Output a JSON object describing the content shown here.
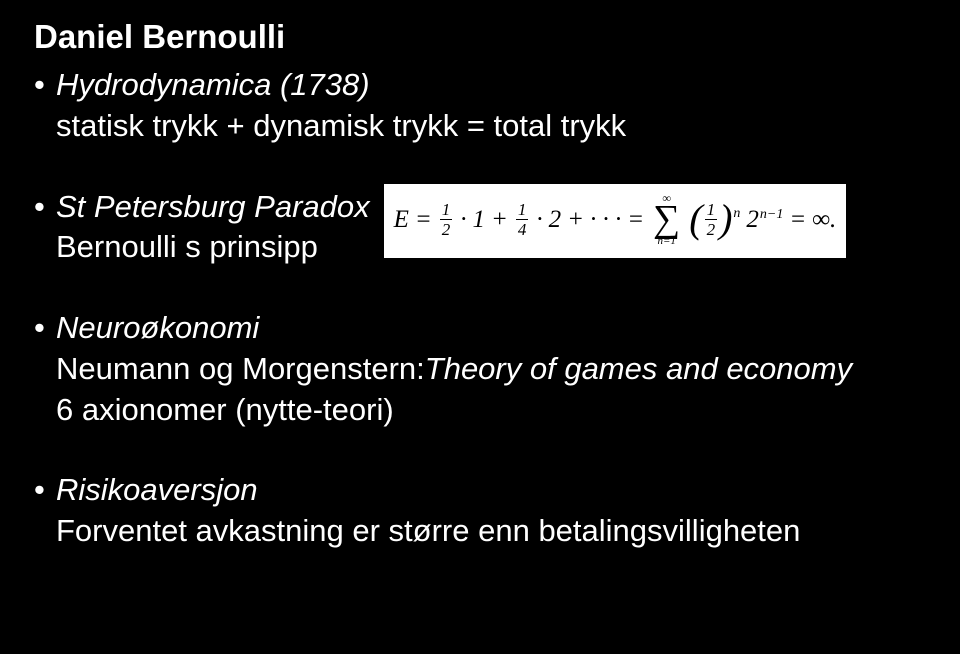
{
  "background_color": "#000000",
  "text_color": "#ffffff",
  "font_family": "Arial, Helvetica, sans-serif",
  "base_fontsize": 31,
  "title": "Daniel Bernoulli",
  "bullets": [
    {
      "heading": "Hydrodynamica (1738)",
      "heading_italic": true,
      "subs": [
        {
          "text": "statisk trykk + dynamisk trykk = total trykk",
          "italic": false
        }
      ]
    },
    {
      "heading": "St Petersburg Paradox",
      "heading_italic": true,
      "subs": [
        {
          "text": "Bernoulli s prinsipp",
          "italic": false
        }
      ],
      "has_formula": true
    },
    {
      "heading": "Neuroøkonomi",
      "heading_italic": true,
      "subs": [
        {
          "text": "Neumann og Morgenstern:Theory of games and economy",
          "italic": false
        },
        {
          "text": "6 axionomer (nytte-teori)",
          "italic": false
        }
      ]
    },
    {
      "heading": "Risikoaversjon",
      "heading_italic": true,
      "subs": [
        {
          "text": "Forventet avkastning er større enn betalingsvilligheten",
          "italic": false
        }
      ]
    }
  ],
  "formula": {
    "background": "#ffffff",
    "text_color": "#000000",
    "font_family": "Georgia, Times New Roman, serif",
    "lhs_var": "E",
    "terms": [
      {
        "frac_num": "1",
        "frac_den": "2",
        "mult_val": "1"
      },
      {
        "frac_num": "1",
        "frac_den": "4",
        "mult_val": "2"
      }
    ],
    "ellipsis": "· · ·",
    "sum_lower": "n=1",
    "sum_upper": "∞",
    "paren_frac_num": "1",
    "paren_frac_den": "2",
    "paren_exp": "n",
    "two_exp_base": "2",
    "two_exp_exp": "n−1",
    "rhs": "∞."
  }
}
